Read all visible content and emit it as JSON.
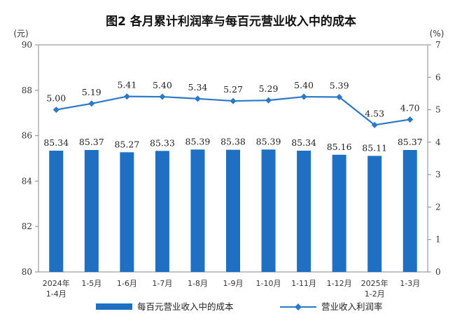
{
  "chart_data": {
    "type": "bar+line",
    "title": "图2  各月累计利润率与每百元营业收入中的成本",
    "left_unit": "(元)",
    "right_unit": "(%)",
    "categories": [
      [
        "2024年",
        "1-4月"
      ],
      [
        "1-5月"
      ],
      [
        "1-6月"
      ],
      [
        "1-7月"
      ],
      [
        "1-8月"
      ],
      [
        "1-9月"
      ],
      [
        "1-10月"
      ],
      [
        "1-11月"
      ],
      [
        "1-12月"
      ],
      [
        "2025年",
        "1-2月"
      ],
      [
        "1-3月"
      ]
    ],
    "bar_series": {
      "name": "每百元营业收入中的成本",
      "values": [
        85.34,
        85.37,
        85.27,
        85.33,
        85.39,
        85.38,
        85.39,
        85.34,
        85.16,
        85.11,
        85.37
      ],
      "labels": [
        "85.34",
        "85.37",
        "85.27",
        "85.33",
        "85.39",
        "85.38",
        "85.39",
        "85.34",
        "85.16",
        "85.11",
        "85.37"
      ],
      "axis": "left"
    },
    "line_series": {
      "name": "营业收入利润率",
      "values": [
        5.0,
        5.19,
        5.41,
        5.4,
        5.34,
        5.27,
        5.29,
        5.4,
        5.39,
        4.53,
        4.7
      ],
      "labels": [
        "5.00",
        "5.19",
        "5.41",
        "5.40",
        "5.34",
        "5.27",
        "5.29",
        "5.40",
        "5.39",
        "4.53",
        "4.70"
      ],
      "axis": "right"
    },
    "left_axis": {
      "min": 80,
      "max": 90,
      "ticks": [
        80,
        82,
        84,
        86,
        88,
        90
      ]
    },
    "right_axis": {
      "min": 0,
      "max": 7,
      "ticks": [
        0,
        1,
        2,
        3,
        4,
        5,
        6,
        7
      ]
    },
    "legend_position": "bottom",
    "grid": false
  },
  "colors": {
    "bar": "#1f6fc2",
    "line": "#2b78c9",
    "axis": "#888888"
  }
}
